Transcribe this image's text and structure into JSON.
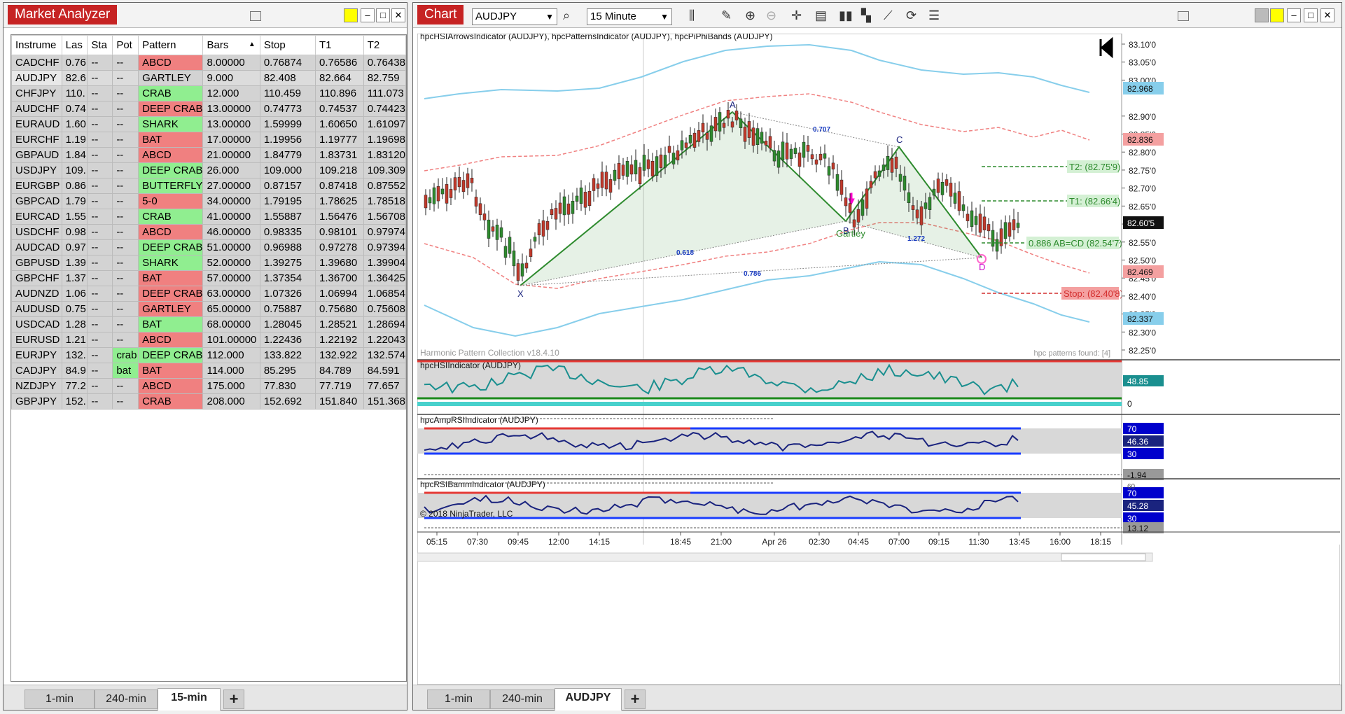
{
  "market_analyzer": {
    "title": "Market Analyzer",
    "columns": [
      "Instrume",
      "Las",
      "Sta",
      "Pot",
      "Pattern",
      "Bars",
      "Stop",
      "T1",
      "T2"
    ],
    "rows": [
      {
        "instrument": "CADCHF",
        "last": "0.76",
        "status": "--",
        "pot": "--",
        "pattern": "ABCD",
        "pattern_color": "red",
        "bars": "8.00000",
        "stop": "0.76874",
        "t1": "0.76586",
        "t2": "0.76438"
      },
      {
        "instrument": "AUDJPY",
        "last": "82.6",
        "status": "--",
        "pot": "--",
        "pattern": "GARTLEY",
        "pattern_color": "white",
        "bars": "9.000",
        "stop": "82.408",
        "t1": "82.664",
        "t2": "82.759"
      },
      {
        "instrument": "CHFJPY",
        "last": "110.",
        "status": "--",
        "pot": "--",
        "pattern": "CRAB",
        "pattern_color": "green",
        "bars": "12.000",
        "stop": "110.459",
        "t1": "110.896",
        "t2": "111.073"
      },
      {
        "instrument": "AUDCHF",
        "last": "0.74",
        "status": "--",
        "pot": "--",
        "pattern": "DEEP CRAB",
        "pattern_color": "red",
        "bars": "13.00000",
        "stop": "0.74773",
        "t1": "0.74537",
        "t2": "0.74423"
      },
      {
        "instrument": "EURAUD",
        "last": "1.60",
        "status": "--",
        "pot": "--",
        "pattern": "SHARK",
        "pattern_color": "green",
        "bars": "13.00000",
        "stop": "1.59999",
        "t1": "1.60650",
        "t2": "1.61097"
      },
      {
        "instrument": "EURCHF",
        "last": "1.19",
        "status": "--",
        "pot": "--",
        "pattern": "BAT",
        "pattern_color": "red",
        "bars": "17.00000",
        "stop": "1.19956",
        "t1": "1.19777",
        "t2": "1.19698"
      },
      {
        "instrument": "GBPAUD",
        "last": "1.84",
        "status": "--",
        "pot": "--",
        "pattern": "ABCD",
        "pattern_color": "red",
        "bars": "21.00000",
        "stop": "1.84779",
        "t1": "1.83731",
        "t2": "1.83120"
      },
      {
        "instrument": "USDJPY",
        "last": "109.",
        "status": "--",
        "pot": "--",
        "pattern": "DEEP CRAB",
        "pattern_color": "green",
        "bars": "26.000",
        "stop": "109.000",
        "t1": "109.218",
        "t2": "109.309"
      },
      {
        "instrument": "EURGBP",
        "last": "0.86",
        "status": "--",
        "pot": "--",
        "pattern": "BUTTERFLY",
        "pattern_color": "green",
        "bars": "27.00000",
        "stop": "0.87157",
        "t1": "0.87418",
        "t2": "0.87552"
      },
      {
        "instrument": "GBPCAD",
        "last": "1.79",
        "status": "--",
        "pot": "--",
        "pattern": "5-0",
        "pattern_color": "red",
        "bars": "34.00000",
        "stop": "1.79195",
        "t1": "1.78625",
        "t2": "1.78518"
      },
      {
        "instrument": "EURCAD",
        "last": "1.55",
        "status": "--",
        "pot": "--",
        "pattern": "CRAB",
        "pattern_color": "green",
        "bars": "41.00000",
        "stop": "1.55887",
        "t1": "1.56476",
        "t2": "1.56708"
      },
      {
        "instrument": "USDCHF",
        "last": "0.98",
        "status": "--",
        "pot": "--",
        "pattern": "ABCD",
        "pattern_color": "red",
        "bars": "46.00000",
        "stop": "0.98335",
        "t1": "0.98101",
        "t2": "0.97974"
      },
      {
        "instrument": "AUDCAD",
        "last": "0.97",
        "status": "--",
        "pot": "--",
        "pattern": "DEEP CRAB",
        "pattern_color": "green",
        "bars": "51.00000",
        "stop": "0.96988",
        "t1": "0.97278",
        "t2": "0.97394"
      },
      {
        "instrument": "GBPUSD",
        "last": "1.39",
        "status": "--",
        "pot": "--",
        "pattern": "SHARK",
        "pattern_color": "green",
        "bars": "52.00000",
        "stop": "1.39275",
        "t1": "1.39680",
        "t2": "1.39904"
      },
      {
        "instrument": "GBPCHF",
        "last": "1.37",
        "status": "--",
        "pot": "--",
        "pattern": "BAT",
        "pattern_color": "red",
        "bars": "57.00000",
        "stop": "1.37354",
        "t1": "1.36700",
        "t2": "1.36425"
      },
      {
        "instrument": "AUDNZD",
        "last": "1.06",
        "status": "--",
        "pot": "--",
        "pattern": "DEEP CRAB",
        "pattern_color": "red",
        "bars": "63.00000",
        "stop": "1.07326",
        "t1": "1.06994",
        "t2": "1.06854"
      },
      {
        "instrument": "AUDUSD",
        "last": "0.75",
        "status": "--",
        "pot": "--",
        "pattern": "GARTLEY",
        "pattern_color": "red",
        "bars": "65.00000",
        "stop": "0.75887",
        "t1": "0.75680",
        "t2": "0.75608"
      },
      {
        "instrument": "USDCAD",
        "last": "1.28",
        "status": "--",
        "pot": "--",
        "pattern": "BAT",
        "pattern_color": "green",
        "bars": "68.00000",
        "stop": "1.28045",
        "t1": "1.28521",
        "t2": "1.28694"
      },
      {
        "instrument": "EURUSD",
        "last": "1.21",
        "status": "--",
        "pot": "--",
        "pattern": "ABCD",
        "pattern_color": "red",
        "bars": "101.00000",
        "stop": "1.22436",
        "t1": "1.22192",
        "t2": "1.22043"
      },
      {
        "instrument": "EURJPY",
        "last": "132.",
        "status": "--",
        "pot": "crab",
        "pattern": "DEEP CRAB",
        "pattern_color": "green",
        "bars": "112.000",
        "stop": "133.822",
        "t1": "132.922",
        "t2": "132.574"
      },
      {
        "instrument": "CADJPY",
        "last": "84.9",
        "status": "--",
        "pot": "bat",
        "pattern": "BAT",
        "pattern_color": "red",
        "bars": "114.000",
        "stop": "85.295",
        "t1": "84.789",
        "t2": "84.591"
      },
      {
        "instrument": "NZDJPY",
        "last": "77.2",
        "status": "--",
        "pot": "--",
        "pattern": "ABCD",
        "pattern_color": "red",
        "bars": "175.000",
        "stop": "77.830",
        "t1": "77.719",
        "t2": "77.657"
      },
      {
        "instrument": "GBPJPY",
        "last": "152.",
        "status": "--",
        "pot": "--",
        "pattern": "CRAB",
        "pattern_color": "red",
        "bars": "208.000",
        "stop": "152.692",
        "t1": "151.840",
        "t2": "151.368"
      }
    ],
    "tabs": [
      "1-min",
      "240-min",
      "15-min"
    ],
    "active_tab": "15-min",
    "add_tab": "+"
  },
  "chart_window": {
    "title": "Chart",
    "instrument": "AUDJPY",
    "timeframe": "15 Minute",
    "indicator_title": "hpcHSIArrowsIndicator (AUDJPY), hpcPatternsIndicator (AUDJPY), hpcPiPhiBands (AUDJPY)",
    "watermark": "Harmonic Pattern Collection v18.4.10",
    "patterns_found": "hpc patterns found: [4]",
    "pattern_name": "Gartley",
    "points": [
      "X",
      "A",
      "B",
      "C",
      "D"
    ],
    "ratios": [
      "0.707",
      "0.618",
      "0.786",
      "1.272"
    ],
    "t2_label": "T2: (82.75'9)",
    "t1_label": "T1: (82.66'4)",
    "abcd_label": "0.886 AB=CD (82.54'7)",
    "stop_label": "Stop: (82.40'8)",
    "price_ticks": [
      "83.10'0",
      "83.00'0",
      "82.90'0",
      "82.80'0",
      "82.75'0",
      "82.70'0",
      "82.65'0",
      "82.60'0",
      "82.55'0",
      "82.50'0",
      "82.45'0",
      "82.40'0",
      "82.35'0",
      "82.30'0",
      "82.25'0",
      "83.05'0",
      "82.85'0"
    ],
    "price_badges": [
      {
        "label": "82.968",
        "color": "#87ceeb"
      },
      {
        "label": "82.836",
        "color": "#f4a0a0"
      },
      {
        "label": "82.60'5",
        "color": "#111111"
      },
      {
        "label": "82.469",
        "color": "#f4a0a0"
      },
      {
        "label": "82.337",
        "color": "#87ceeb"
      }
    ],
    "time_ticks": [
      "05:15",
      "07:30",
      "09:45",
      "12:00",
      "14:15",
      "18:45",
      "21:00",
      "Apr 26",
      "02:30",
      "04:45",
      "07:00",
      "09:15",
      "11:30",
      "13:45",
      "16:00",
      "18:15"
    ],
    "copyright": "© 2018 NinjaTrader, LLC",
    "panels": [
      {
        "title": "hpcHSIIndicator (AUDJPY)",
        "badges": [
          "48.85",
          "0"
        ]
      },
      {
        "title": "hpcAmpRSIIndicator (AUDJPY)",
        "badges": [
          "70",
          "46.36",
          "30",
          "-1.94"
        ]
      },
      {
        "title": "hpcRSIBammIndicator (AUDJPY)",
        "badges": [
          "70",
          "45.28",
          "30",
          "13.12"
        ],
        "partial_tick": "60"
      }
    ],
    "tabs": [
      "1-min",
      "240-min",
      "AUDJPY"
    ],
    "active_tab": "AUDJPY",
    "add_tab": "+"
  },
  "colors": {
    "accent": "#c62323",
    "bull": "#2e8b2e",
    "bear": "#c0392b",
    "band_blue": "#87ceeb",
    "band_red": "#f08080",
    "pattern_green": "#2e8b2e",
    "rsi_navy": "#1a237e"
  }
}
